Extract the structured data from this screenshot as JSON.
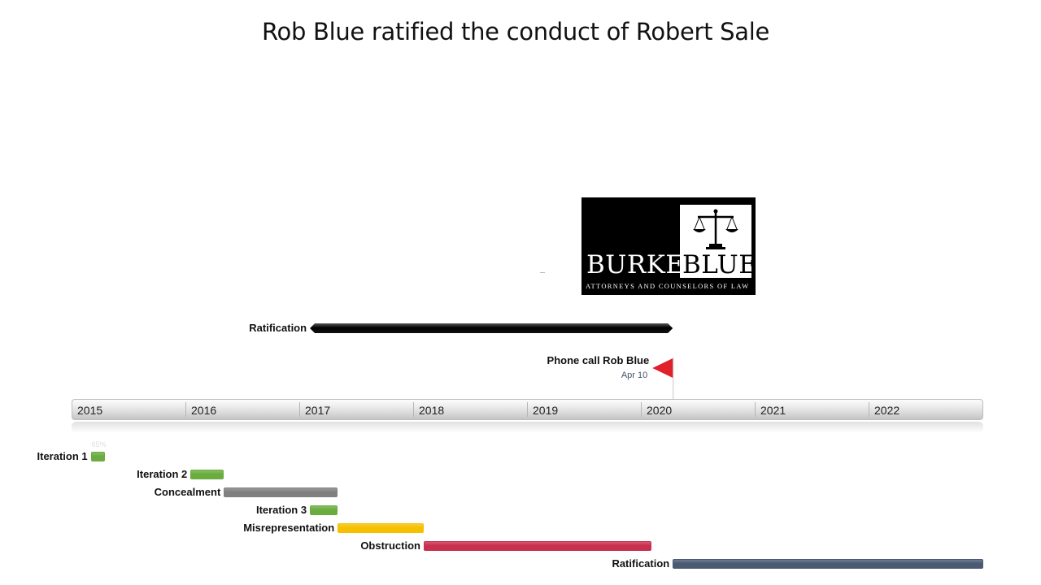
{
  "title": "Rob Blue ratified the conduct of Robert Sale",
  "logo": {
    "name_left": "BURKE",
    "name_right": "BLUE",
    "tagline": "ATTORNEYS AND COUNSELORS OF LAW"
  },
  "chart_data": {
    "type": "timeline",
    "time_axis": {
      "start": "2015-01-01",
      "end": "2023-01-01",
      "years": [
        "2015",
        "2016",
        "2017",
        "2018",
        "2019",
        "2020",
        "2021",
        "2022"
      ]
    },
    "span": {
      "label": "Ratification",
      "start": "2017-02-01",
      "end": "2020-04-10",
      "color": "#000000"
    },
    "milestone": {
      "label": "Phone call Rob Blue",
      "date_label": "Apr 10",
      "date": "2020-04-10",
      "color": "#e0202b"
    },
    "tasks": [
      {
        "label": "Iteration 1",
        "start": "2015-03-01",
        "end": "2015-04-15",
        "color": "#6aac3f",
        "percent_label": "65%"
      },
      {
        "label": "Iteration 2",
        "start": "2016-01-15",
        "end": "2016-05-01",
        "color": "#6aac3f"
      },
      {
        "label": "Concealment",
        "start": "2016-05-01",
        "end": "2017-05-01",
        "color": "#808080"
      },
      {
        "label": "Iteration 3",
        "start": "2017-02-01",
        "end": "2017-05-01",
        "color": "#6aac3f"
      },
      {
        "label": "Misrepresentation",
        "start": "2017-05-01",
        "end": "2018-02-01",
        "color": "#f5c000"
      },
      {
        "label": "Obstruction",
        "start": "2018-02-01",
        "end": "2020-02-01",
        "color": "#c8304f"
      },
      {
        "label": "Ratification",
        "start": "2020-04-10",
        "end": "2023-01-01",
        "color": "#4a5a72"
      }
    ]
  }
}
